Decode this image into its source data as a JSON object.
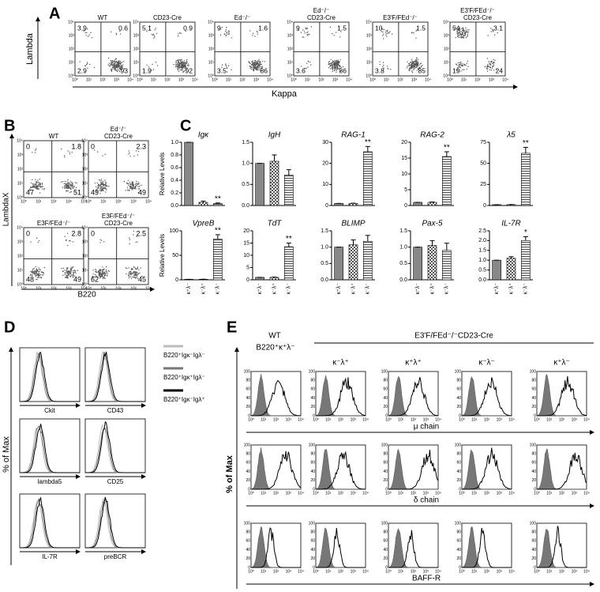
{
  "panel_labels": [
    "A",
    "B",
    "C",
    "D",
    "E"
  ],
  "log_ticks": [
    "10⁰",
    "10¹",
    "10²",
    "10³",
    "10⁴"
  ],
  "panel_a": {
    "y_label": "Lambda",
    "x_label": "Kappa",
    "plots": [
      {
        "title": [
          "WT"
        ],
        "quadrants": [
          3.9,
          0.6,
          2.9,
          93
        ]
      },
      {
        "title": [
          "CD23-Cre"
        ],
        "quadrants": [
          5.1,
          0.9,
          1.9,
          92
        ]
      },
      {
        "title": [
          "Ed⁻/⁻"
        ],
        "quadrants": [
          9,
          1.6,
          3.5,
          86
        ]
      },
      {
        "title": [
          "Ed⁻/⁻",
          "CD23-Cre"
        ],
        "quadrants": [
          9,
          1.5,
          3.6,
          86
        ]
      },
      {
        "title": [
          "E3′F/FEd⁻/⁻"
        ],
        "quadrants": [
          10,
          1.5,
          3.8,
          85
        ]
      },
      {
        "title": [
          "E3′F/FEd⁻/⁻",
          "CD23-Cre"
        ],
        "quadrants": [
          54,
          3.1,
          19,
          24
        ]
      }
    ]
  },
  "panel_b": {
    "y_label": "LambdaX",
    "x_label": "B220",
    "plots": [
      {
        "title": [
          "WT"
        ],
        "quadrants": [
          0,
          1.8,
          47,
          51
        ]
      },
      {
        "title": [
          "Ed⁻/⁻",
          "CD23-Cre"
        ],
        "quadrants": [
          0,
          2.3,
          49,
          49
        ]
      },
      {
        "title": [
          "E3F/FEd⁻/⁻"
        ],
        "quadrants": [
          0,
          2.8,
          48,
          49
        ]
      },
      {
        "title": [
          "E3F/FEd⁻/⁻",
          "CD23-Cre"
        ],
        "quadrants": [
          0,
          2.5,
          62,
          45
        ]
      }
    ]
  },
  "chart_data": [
    {
      "type": "bar",
      "title": "Igκ",
      "y_label": "Relative Levels",
      "values": [
        1,
        0.05,
        0.03
      ],
      "errors": [
        0,
        0.02,
        0.01
      ],
      "annotation": "**",
      "ylim": [
        0,
        1
      ],
      "yticks": [
        {
          "value": 0,
          "label": "0.0"
        },
        {
          "value": 0.2,
          "label": "0.2"
        },
        {
          "value": 0.4,
          "label": "0.4"
        },
        {
          "value": 0.6,
          "label": "0.6"
        },
        {
          "value": 0.8,
          "label": "0.8"
        },
        {
          "value": 1,
          "label": "1.0"
        }
      ]
    },
    {
      "type": "bar",
      "title": "IgH",
      "values": [
        1,
        1.05,
        0.72
      ],
      "errors": [
        0,
        0.15,
        0.13
      ],
      "ylim": [
        0,
        1.5
      ],
      "yticks": [
        {
          "value": 0,
          "label": "0.0"
        },
        {
          "value": 0.5,
          "label": "0.5"
        },
        {
          "value": 1,
          "label": "1.0"
        },
        {
          "value": 1.5,
          "label": "1.5"
        }
      ]
    },
    {
      "type": "bar",
      "title": "RAG-1",
      "values": [
        1,
        1,
        25.5
      ],
      "errors": [
        0,
        0.1,
        2.5
      ],
      "annotation": "**",
      "ylim": [
        0,
        30
      ],
      "yticks": [
        0,
        10,
        20,
        30
      ]
    },
    {
      "type": "bar",
      "title": "RAG-2",
      "values": [
        1,
        1,
        15.5
      ],
      "errors": [
        0,
        0.1,
        1.5
      ],
      "annotation": "**",
      "ylim": [
        0,
        20
      ],
      "yticks": [
        0,
        5,
        10,
        15,
        20
      ]
    },
    {
      "type": "bar",
      "title": "λ5",
      "values": [
        1,
        1,
        62
      ],
      "errors": [
        0,
        0.2,
        7
      ],
      "annotation": "**",
      "ylim": [
        0,
        75
      ],
      "yticks": [
        0,
        25,
        50,
        75
      ]
    },
    {
      "type": "bar",
      "title": "VpreB",
      "y_label": "Relative Levels",
      "categories": [
        "κ⁺λ⁻",
        "κ⁻λ⁺",
        "κ⁻λ⁻"
      ],
      "values": [
        1,
        1,
        83
      ],
      "errors": [
        0,
        0.2,
        9
      ],
      "annotation": "**",
      "ylim": [
        0,
        100
      ],
      "yticks": [
        0,
        50,
        100
      ]
    },
    {
      "type": "bar",
      "title": "TdT",
      "categories": [
        "κ⁺λ⁻",
        "κ⁻λ⁺",
        "κ⁻λ⁻"
      ],
      "values": [
        1,
        1,
        13.5
      ],
      "errors": [
        0,
        0.1,
        1.5
      ],
      "annotation": "**",
      "ylim": [
        0,
        20
      ],
      "yticks": [
        0,
        5,
        10,
        15,
        20
      ]
    },
    {
      "type": "bar",
      "title": "BLIMP",
      "categories": [
        "κ⁺λ⁻",
        "κ⁻λ⁺",
        "κ⁻λ⁻"
      ],
      "values": [
        1,
        1.07,
        1.18
      ],
      "errors": [
        0,
        0.15,
        0.18
      ],
      "ylim": [
        0,
        1.5
      ],
      "yticks": [
        {
          "value": 0,
          "label": "0.0"
        },
        {
          "value": 0.5,
          "label": "0.5"
        },
        {
          "value": 1,
          "label": "1.0"
        },
        {
          "value": 1.5,
          "label": "1.5"
        }
      ]
    },
    {
      "type": "bar",
      "title": "Pax-5",
      "categories": [
        "κ⁺λ⁻",
        "κ⁻λ⁺",
        "κ⁻λ⁻"
      ],
      "values": [
        1,
        1.05,
        0.9
      ],
      "errors": [
        0,
        0.15,
        0.22
      ],
      "ylim": [
        0,
        1.5
      ],
      "yticks": [
        {
          "value": 0,
          "label": "0.0"
        },
        {
          "value": 0.5,
          "label": "0.5"
        },
        {
          "value": 1,
          "label": "1.0"
        },
        {
          "value": 1.5,
          "label": "1.5"
        }
      ]
    },
    {
      "type": "bar",
      "title": "IL-7R",
      "categories": [
        "κ⁺λ⁻",
        "κ⁻λ⁺",
        "κ⁻λ⁻"
      ],
      "values": [
        1,
        1.1,
        2
      ],
      "errors": [
        0,
        0.08,
        0.2
      ],
      "annotation": "*",
      "ylim": [
        0,
        2.5
      ],
      "yticks": [
        {
          "value": 0,
          "label": "0.0"
        },
        {
          "value": 0.5,
          "label": "0.5"
        },
        {
          "value": 1,
          "label": "1.0"
        },
        {
          "value": 1.5,
          "label": "1.5"
        },
        {
          "value": 2,
          "label": "2.0"
        },
        {
          "value": 2.5,
          "label": "2.5"
        }
      ]
    }
  ],
  "panel_d": {
    "y_label": "% of Max",
    "plots": [
      "Ckit",
      "CD43",
      "lambda5",
      "CD25",
      "IL-7R",
      "preBCR"
    ],
    "legend": [
      {
        "label": "B220⁺Igκ⁻Igλ⁻",
        "color": "#bbbbbb"
      },
      {
        "label": "B220⁺Igκ⁺Igλ⁻",
        "color": "#777777"
      },
      {
        "label": "B220⁺Igκ⁻Igλ⁺",
        "color": "#000000"
      }
    ]
  },
  "panel_e": {
    "control": [
      "WT",
      "B220⁺κ⁺λ⁻"
    ],
    "group": "E3′F/FEd⁻/⁻CD23-Cre",
    "columns": [
      "κ⁻λ⁺",
      "κ⁺λ⁺",
      "κ⁻λ⁻",
      "κ⁺λ⁻"
    ],
    "y_label": "% of Max",
    "rows": [
      "μ chain",
      "δ chain",
      "BAFF-R"
    ],
    "yticks": [
      0,
      20,
      40,
      60,
      80,
      100
    ]
  }
}
